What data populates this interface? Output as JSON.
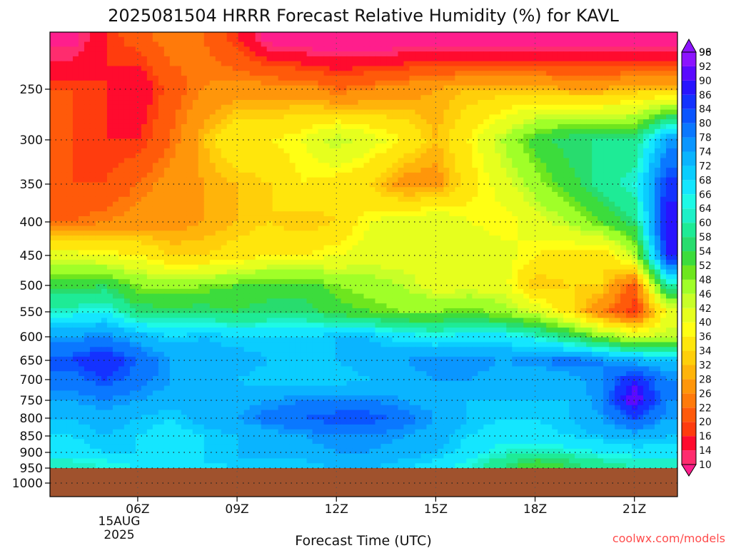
{
  "chart_data": {
    "type": "heatmap",
    "title": "2025081504 HRRR Forecast Relative Humidity (%) for KAVL",
    "xlabel": "Forecast Time (UTC)",
    "ylabel": "",
    "credit": "coolwx.com/models",
    "date_label": {
      "line1": "15AUG",
      "line2": "2025"
    },
    "x_ticks": [
      "06Z",
      "09Z",
      "12Z",
      "15Z",
      "18Z",
      "21Z"
    ],
    "x_hours": [
      4,
      5,
      6,
      7,
      8,
      9,
      10,
      11,
      12,
      13,
      14,
      15,
      16,
      17,
      18,
      19,
      20,
      21,
      22
    ],
    "y_ticks": [
      250,
      300,
      350,
      400,
      450,
      500,
      550,
      600,
      650,
      700,
      750,
      800,
      850,
      900,
      950,
      1000
    ],
    "pressure_levels": [
      200,
      250,
      300,
      350,
      400,
      450,
      500,
      550,
      600,
      650,
      700,
      750,
      800,
      850,
      900,
      925,
      950
    ],
    "surface_pressure": 950,
    "colorbar_levels": [
      10,
      14,
      16,
      20,
      22,
      26,
      28,
      32,
      34,
      36,
      40,
      42,
      46,
      48,
      52,
      54,
      58,
      60,
      64,
      66,
      68,
      72,
      74,
      78,
      80,
      84,
      86,
      90,
      92,
      96,
      98
    ],
    "colorbar_colors": [
      "#ff1e8c",
      "#ff2c6e",
      "#ff0b2e",
      "#ff3c0e",
      "#ff5a0a",
      "#ff7a0a",
      "#ff960a",
      "#ffb40a",
      "#ffcf0a",
      "#ffe60c",
      "#ffff14",
      "#e6ff1e",
      "#c8ff28",
      "#a0ff28",
      "#6ee61e",
      "#3cdc3c",
      "#28dc6e",
      "#1eeb96",
      "#1ef0c8",
      "#1efae6",
      "#14e6ff",
      "#0acdff",
      "#0ab4ff",
      "#0a96ff",
      "#0a78ff",
      "#0a55ff",
      "#1432ff",
      "#2814ff",
      "#5a0aff",
      "#8c14ff"
    ],
    "underground_color": "#a0522d",
    "grid": true,
    "values": [
      [
        12,
        20,
        24,
        28,
        26,
        20,
        12,
        10,
        10,
        10,
        10,
        10,
        10,
        10,
        10,
        10,
        10,
        10,
        10
      ],
      [
        22,
        20,
        16,
        24,
        28,
        30,
        30,
        30,
        26,
        28,
        30,
        32,
        34,
        34,
        34,
        32,
        32,
        34,
        34
      ],
      [
        22,
        20,
        20,
        26,
        34,
        40,
        40,
        42,
        48,
        44,
        40,
        34,
        40,
        48,
        56,
        60,
        60,
        60,
        78
      ],
      [
        22,
        22,
        26,
        30,
        32,
        34,
        36,
        40,
        38,
        36,
        30,
        30,
        38,
        44,
        50,
        56,
        62,
        66,
        88
      ],
      [
        26,
        28,
        30,
        30,
        32,
        34,
        36,
        34,
        36,
        42,
        44,
        46,
        42,
        40,
        44,
        48,
        54,
        60,
        92
      ],
      [
        44,
        42,
        40,
        36,
        36,
        38,
        40,
        40,
        42,
        44,
        44,
        44,
        46,
        44,
        40,
        38,
        36,
        48,
        90
      ],
      [
        56,
        58,
        52,
        50,
        52,
        54,
        56,
        56,
        52,
        50,
        48,
        44,
        44,
        44,
        34,
        36,
        36,
        24,
        64
      ],
      [
        66,
        68,
        60,
        60,
        60,
        58,
        60,
        60,
        56,
        54,
        52,
        52,
        54,
        50,
        46,
        38,
        28,
        20,
        42
      ],
      [
        78,
        80,
        76,
        72,
        74,
        72,
        72,
        72,
        74,
        74,
        70,
        68,
        70,
        70,
        66,
        60,
        52,
        46,
        48
      ],
      [
        86,
        90,
        84,
        78,
        76,
        76,
        74,
        72,
        74,
        76,
        78,
        80,
        80,
        78,
        80,
        82,
        80,
        76,
        74
      ],
      [
        82,
        86,
        82,
        78,
        76,
        74,
        72,
        72,
        72,
        74,
        76,
        78,
        78,
        76,
        74,
        76,
        80,
        90,
        80
      ],
      [
        78,
        80,
        78,
        76,
        74,
        76,
        78,
        80,
        80,
        80,
        78,
        76,
        74,
        74,
        74,
        74,
        80,
        96,
        80
      ],
      [
        74,
        76,
        74,
        72,
        76,
        78,
        82,
        84,
        86,
        86,
        82,
        78,
        74,
        72,
        72,
        74,
        78,
        86,
        78
      ],
      [
        72,
        74,
        72,
        70,
        72,
        74,
        76,
        78,
        80,
        80,
        78,
        76,
        72,
        70,
        70,
        72,
        74,
        76,
        74
      ],
      [
        70,
        72,
        72,
        70,
        72,
        74,
        76,
        76,
        78,
        78,
        76,
        74,
        70,
        66,
        64,
        66,
        68,
        70,
        70
      ],
      [
        66,
        68,
        70,
        72,
        72,
        74,
        74,
        74,
        76,
        76,
        74,
        72,
        68,
        62,
        58,
        60,
        64,
        66,
        66
      ],
      [
        64,
        66,
        68,
        70,
        70,
        72,
        72,
        72,
        74,
        74,
        72,
        70,
        66,
        60,
        54,
        58,
        62,
        64,
        64
      ]
    ]
  }
}
